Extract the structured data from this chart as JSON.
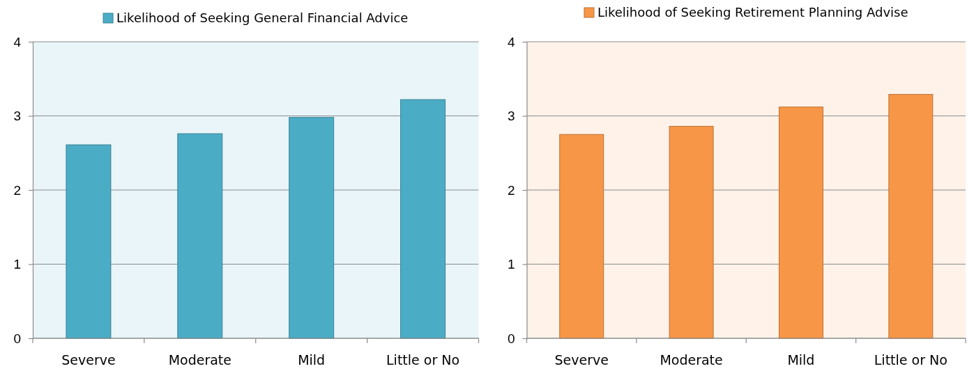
{
  "chart_data": [
    {
      "type": "bar",
      "categories": [
        "Severve",
        "Moderate",
        "Mild",
        "Little or No"
      ],
      "series": [
        {
          "name": "Likelihood of Seeking General Financial Advice",
          "color": "#4bacc6",
          "values": [
            2.61,
            2.76,
            2.98,
            3.22
          ]
        }
      ],
      "ylim": [
        0,
        4
      ],
      "yticks": [
        0,
        1,
        2,
        3,
        4
      ],
      "grid": "y",
      "legend": "top"
    },
    {
      "type": "bar",
      "categories": [
        "Severve",
        "Moderate",
        "Mild",
        "Little or No"
      ],
      "series": [
        {
          "name": "Likelihood of Seeking Retirement Planning Advise",
          "color": "#f79646",
          "values": [
            2.75,
            2.86,
            3.12,
            3.29
          ]
        }
      ],
      "ylim": [
        0,
        4
      ],
      "yticks": [
        0,
        1,
        2,
        3,
        4
      ],
      "grid": "y",
      "legend": "top"
    }
  ]
}
